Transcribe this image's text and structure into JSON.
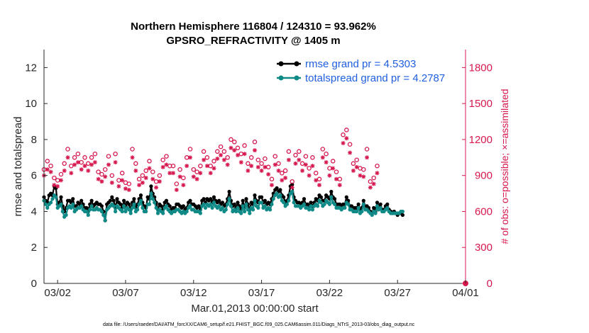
{
  "chart_data": {
    "type": "line",
    "title": "Northern Hemisphere 116804 / 124310 = 93.962%",
    "subtitle": "GPSRO_REFRACTIVITY @ 1405 m",
    "xlabel": "Mar.01,2013 00:00:00 start",
    "ylabel": "rmse and totalspread",
    "y2label": "# of obs: o=possible; ×=assimilated",
    "xlim": [
      0,
      31
    ],
    "ylim": [
      0,
      13
    ],
    "y2lim": [
      0,
      1950
    ],
    "x_ticks": [
      {
        "x": 1,
        "label": "03/02"
      },
      {
        "x": 6,
        "label": "03/07"
      },
      {
        "x": 11,
        "label": "03/12"
      },
      {
        "x": 16,
        "label": "03/17"
      },
      {
        "x": 21,
        "label": "03/22"
      },
      {
        "x": 26,
        "label": "03/27"
      },
      {
        "x": 31,
        "label": "04/01"
      }
    ],
    "y_ticks": [
      0,
      2,
      4,
      6,
      8,
      10,
      12
    ],
    "y2_ticks": [
      0,
      300,
      600,
      900,
      1200,
      1500,
      1800
    ],
    "legend": {
      "placement": "top-right",
      "entries": [
        "rmse grand pr = 4.5303",
        "totalspread grand pr = 4.2787"
      ]
    },
    "colors": {
      "rmse": "#000000",
      "totalspread": "#0f8a86",
      "obs": "#d6184f"
    },
    "series": [
      {
        "name": "rmse",
        "x_step": 0.125,
        "values": [
          4.8,
          4.6,
          4.5,
          4.9,
          5.0,
          4.9,
          5.4,
          5.3,
          4.4,
          4.5,
          4.8,
          4.3,
          4.0,
          4.2,
          4.6,
          4.6,
          4.5,
          4.7,
          4.3,
          4.3,
          4.5,
          4.4,
          4.6,
          4.4,
          4.2,
          4.2,
          4.0,
          4.4,
          4.6,
          4.3,
          4.4,
          4.5,
          4.4,
          4.4,
          4.3,
          4.0,
          3.5,
          4.4,
          4.5,
          4.6,
          4.8,
          4.6,
          4.2,
          4.7,
          4.5,
          4.4,
          4.2,
          4.6,
          4.3,
          4.5,
          4.4,
          4.1,
          4.5,
          4.7,
          4.2,
          4.4,
          4.7,
          4.9,
          4.5,
          4.3,
          4.2,
          4.8,
          4.7,
          5.4,
          5.0,
          4.8,
          4.5,
          4.1,
          4.4,
          4.3,
          4.1,
          4.5,
          4.6,
          4.4,
          4.3,
          4.1,
          4.2,
          4.2,
          4.4,
          4.4,
          4.3,
          4.2,
          4.3,
          4.1,
          4.2,
          4.5,
          4.6,
          4.4,
          4.4,
          4.3,
          4.2,
          4.3,
          4.1,
          4.6,
          4.7,
          4.5,
          4.7,
          4.6,
          4.7,
          4.5,
          4.8,
          4.6,
          4.5,
          4.6,
          4.4,
          4.5,
          4.3,
          4.4,
          4.7,
          5.1,
          4.6,
          4.3,
          4.4,
          4.2,
          4.5,
          4.3,
          4.1,
          4.6,
          4.2,
          4.7,
          4.4,
          4.1,
          4.5,
          4.4,
          4.9,
          4.6,
          4.5,
          4.8,
          4.8,
          4.5,
          4.6,
          4.4,
          4.5,
          4.4,
          4.7,
          5.0,
          5.2,
          5.3,
          5.1,
          5.2,
          4.9,
          4.8,
          4.5,
          4.6,
          4.9,
          5.4,
          5.5,
          4.8,
          4.6,
          4.5,
          4.5,
          4.4,
          4.5,
          4.7,
          4.4,
          4.4,
          4.3,
          4.5,
          4.3,
          4.5,
          4.7,
          4.6,
          4.9,
          4.8,
          4.6,
          4.6,
          4.9,
          4.8,
          4.7,
          5.1,
          4.8,
          4.7,
          4.4,
          4.4,
          4.4,
          4.3,
          4.4,
          4.4,
          4.8,
          4.6,
          4.3,
          4.3,
          4.2,
          4.2,
          4.2,
          4.4,
          4.1,
          4.2,
          4.6,
          4.3,
          4.3,
          4.2,
          4.0,
          3.9,
          4.2,
          4.0,
          4.5,
          4.3,
          4.4,
          4.1,
          4.1,
          4.3,
          4.4,
          4.1,
          4.0,
          3.9,
          4.0,
          3.9,
          3.8,
          3.9,
          3.9,
          3.8
        ]
      },
      {
        "name": "totalspread",
        "x_step": 0.125,
        "values": [
          4.6,
          4.4,
          4.2,
          4.4,
          4.5,
          4.7,
          4.9,
          4.8,
          4.2,
          4.3,
          4.4,
          4.0,
          3.7,
          3.8,
          4.2,
          4.3,
          4.2,
          4.4,
          4.0,
          4.1,
          4.2,
          4.2,
          4.3,
          4.1,
          4.0,
          4.0,
          3.8,
          4.1,
          4.3,
          4.1,
          4.1,
          4.2,
          4.1,
          4.1,
          4.0,
          3.8,
          3.5,
          4.1,
          4.2,
          4.3,
          4.4,
          4.3,
          4.0,
          4.3,
          4.2,
          4.1,
          4.0,
          4.3,
          4.0,
          4.2,
          4.1,
          3.9,
          4.2,
          4.4,
          4.0,
          4.1,
          4.4,
          4.6,
          4.2,
          4.0,
          4.0,
          4.4,
          4.4,
          5.0,
          4.7,
          4.5,
          4.2,
          3.9,
          4.1,
          4.0,
          3.9,
          4.2,
          4.3,
          4.1,
          4.0,
          3.9,
          4.0,
          4.0,
          4.1,
          4.1,
          4.0,
          3.9,
          4.0,
          3.9,
          4.0,
          4.2,
          4.3,
          4.1,
          4.1,
          4.0,
          4.0,
          4.0,
          3.9,
          4.3,
          4.4,
          4.2,
          4.4,
          4.3,
          4.4,
          4.2,
          4.5,
          4.3,
          4.2,
          4.3,
          4.1,
          4.2,
          4.0,
          4.1,
          4.4,
          4.7,
          4.3,
          4.0,
          4.1,
          4.0,
          4.2,
          4.0,
          3.9,
          4.3,
          4.0,
          4.4,
          4.1,
          3.9,
          4.2,
          4.1,
          4.6,
          4.3,
          4.2,
          4.5,
          4.5,
          4.2,
          4.3,
          4.1,
          4.2,
          4.1,
          4.4,
          4.7,
          4.9,
          5.0,
          4.8,
          4.9,
          4.6,
          4.5,
          4.3,
          4.4,
          4.6,
          5.0,
          5.1,
          4.5,
          4.3,
          4.3,
          4.3,
          4.2,
          4.3,
          4.4,
          4.2,
          4.2,
          4.1,
          4.3,
          4.1,
          4.3,
          4.4,
          4.3,
          4.6,
          4.5,
          4.3,
          4.4,
          4.6,
          4.5,
          4.4,
          4.8,
          4.5,
          4.4,
          4.2,
          4.2,
          4.2,
          4.1,
          4.2,
          4.2,
          4.5,
          4.4,
          4.1,
          4.1,
          4.0,
          4.0,
          4.0,
          4.2,
          3.9,
          4.0,
          4.4,
          4.1,
          4.1,
          4.0,
          3.9,
          3.8,
          4.0,
          3.9,
          4.3,
          4.1,
          4.2,
          4.0,
          4.0,
          4.1,
          4.2,
          4.0,
          3.9,
          3.9,
          3.9,
          3.9,
          3.9,
          3.9,
          4.0,
          4.0
        ]
      },
      {
        "name": "obs_possible",
        "x_step": 0.25,
        "axis": "right",
        "values": [
          950,
          1020,
          980,
          880,
          860,
          910,
          1000,
          1120,
          980,
          1050,
          1080,
          1010,
          1050,
          1000,
          1050,
          1080,
          930,
          910,
          950,
          1060,
          900,
          1080,
          860,
          920,
          840,
          830,
          1120,
          1000,
          870,
          900,
          940,
          1020,
          930,
          850,
          900,
          1030,
          1060,
          980,
          980,
          830,
          950,
          880,
          1050,
          1120,
          950,
          930,
          980,
          1100,
          1050,
          980,
          1020,
          1100,
          1140,
          1100,
          1050,
          1200,
          1180,
          1130,
          1080,
          1150,
          1000,
          1050,
          1180,
          1030,
          1000,
          1040,
          970,
          870,
          1060,
          1000,
          920,
          940,
          1100,
          850,
          1070,
          1100,
          1000,
          1060,
          960,
          1050,
          920,
          870,
          1120,
          1080,
          960,
          1020,
          930,
          870,
          1240,
          1280,
          1160,
          1000,
          1030,
          960,
          950,
          1120,
          850,
          880,
          980
        ]
      },
      {
        "name": "obs_assimilated",
        "x_step": 0.25,
        "axis": "right",
        "values": [
          900,
          950,
          930,
          820,
          810,
          860,
          940,
          1050,
          920,
          990,
          1010,
          950,
          980,
          940,
          990,
          1010,
          870,
          850,
          890,
          990,
          840,
          1010,
          810,
          860,
          790,
          780,
          1050,
          940,
          820,
          840,
          880,
          960,
          870,
          800,
          850,
          970,
          990,
          920,
          920,
          780,
          890,
          820,
          980,
          1050,
          890,
          870,
          920,
          1030,
          980,
          920,
          960,
          1040,
          1070,
          1030,
          990,
          1130,
          1110,
          1070,
          1010,
          1080,
          940,
          980,
          1110,
          970,
          940,
          970,
          910,
          820,
          990,
          940,
          860,
          880,
          1030,
          800,
          1000,
          1030,
          940,
          990,
          900,
          980,
          860,
          820,
          1050,
          1010,
          900,
          960,
          870,
          820,
          1170,
          1210,
          1090,
          940,
          970,
          900,
          890,
          1050,
          800,
          830,
          920
        ]
      }
    ]
  },
  "footer": "data file: /Users/raeder/DAI/ATM_forcXX/CAM6_setup/f.e21.FHIST_BGC.f09_025.CAM6assim.011/Diags_NTrS_2013-03/obs_diag_output.nc"
}
